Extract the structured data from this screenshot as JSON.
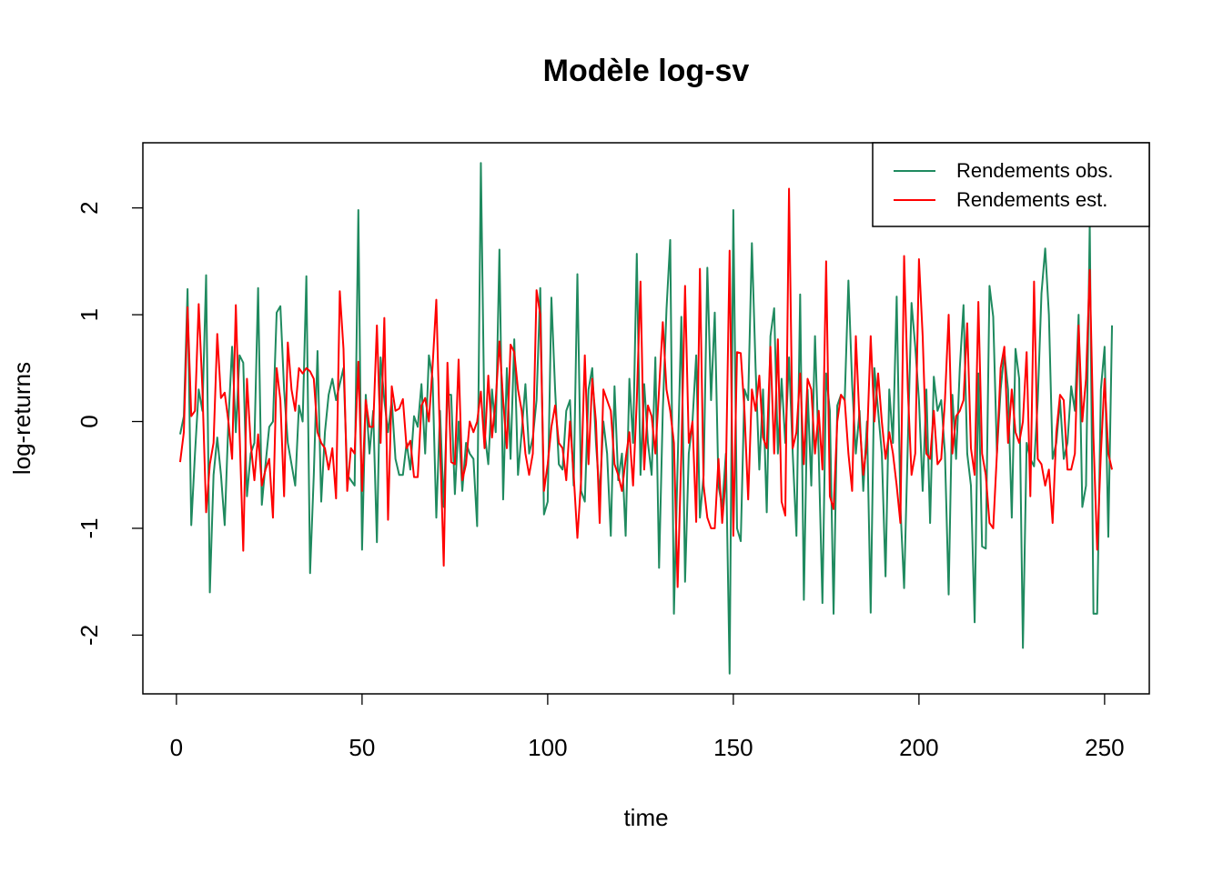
{
  "chart_data": {
    "type": "line",
    "title": "Modèle log-sv",
    "x_label": "time",
    "y_label": "log-returns",
    "x": [
      1,
      2,
      3,
      4,
      5,
      6,
      7,
      8,
      9,
      10,
      11,
      12,
      13,
      14,
      15,
      16,
      17,
      18,
      19,
      20,
      21,
      22,
      23,
      24,
      25,
      26,
      27,
      28,
      29,
      30,
      31,
      32,
      33,
      34,
      35,
      36,
      37,
      38,
      39,
      40,
      41,
      42,
      43,
      44,
      45,
      46,
      47,
      48,
      49,
      50,
      51,
      52,
      53,
      54,
      55,
      56,
      57,
      58,
      59,
      60,
      61,
      62,
      63,
      64,
      65,
      66,
      67,
      68,
      69,
      70,
      71,
      72,
      73,
      74,
      75,
      76,
      77,
      78,
      79,
      80,
      81,
      82,
      83,
      84,
      85,
      86,
      87,
      88,
      89,
      90,
      91,
      92,
      93,
      94,
      95,
      96,
      97,
      98,
      99,
      100,
      101,
      102,
      103,
      104,
      105,
      106,
      107,
      108,
      109,
      110,
      111,
      112,
      113,
      114,
      115,
      116,
      117,
      118,
      119,
      120,
      121,
      122,
      123,
      124,
      125,
      126,
      127,
      128,
      129,
      130,
      131,
      132,
      133,
      134,
      135,
      136,
      137,
      138,
      139,
      140,
      141,
      142,
      143,
      144,
      145,
      146,
      147,
      148,
      149,
      150,
      151,
      152,
      153,
      154,
      155,
      156,
      157,
      158,
      159,
      160,
      161,
      162,
      163,
      164,
      165,
      166,
      167,
      168,
      169,
      170,
      171,
      172,
      173,
      174,
      175,
      176,
      177,
      178,
      179,
      180,
      181,
      182,
      183,
      184,
      185,
      186,
      187,
      188,
      189,
      190,
      191,
      192,
      193,
      194,
      195,
      196,
      197,
      198,
      199,
      200,
      201,
      202,
      203,
      204,
      205,
      206,
      207,
      208,
      209,
      210,
      211,
      212,
      213,
      214,
      215,
      216,
      217,
      218,
      219,
      220,
      221,
      222,
      223,
      224,
      225,
      226,
      227,
      228,
      229,
      230,
      231,
      232,
      233,
      234,
      235,
      236,
      237,
      238,
      239,
      240,
      241,
      242,
      243,
      244,
      245,
      246,
      247,
      248,
      249,
      250,
      251,
      252
    ],
    "series": [
      {
        "name": "Rendements obs.",
        "color": "#1f8a5f",
        "values": [
          -0.12,
          0.05,
          1.24,
          -0.97,
          -0.3,
          0.3,
          0.1,
          1.37,
          -1.6,
          -0.5,
          -0.15,
          -0.5,
          -0.97,
          0.0,
          0.7,
          -0.1,
          0.62,
          0.55,
          -0.7,
          -0.3,
          -0.2,
          1.25,
          -0.78,
          -0.4,
          -0.05,
          0.0,
          1.02,
          1.08,
          0.3,
          -0.2,
          -0.4,
          -0.6,
          0.15,
          0.0,
          1.36,
          -1.42,
          -0.5,
          0.66,
          -0.75,
          -0.1,
          0.25,
          0.4,
          0.2,
          0.35,
          0.5,
          -0.5,
          -0.55,
          -0.6,
          1.98,
          -1.2,
          0.25,
          -0.3,
          0.1,
          -1.13,
          0.6,
          0.2,
          -0.1,
          0.2,
          -0.35,
          -0.5,
          -0.5,
          -0.2,
          -0.45,
          0.05,
          -0.05,
          0.35,
          -0.3,
          0.62,
          0.4,
          -0.9,
          0.1,
          -0.8,
          0.25,
          0.25,
          -0.68,
          0.0,
          -0.65,
          -0.2,
          -0.3,
          -0.35,
          -0.98,
          2.42,
          -0.1,
          -0.4,
          0.3,
          -0.1,
          1.61,
          -0.73,
          0.5,
          -0.35,
          0.77,
          -0.5,
          -0.1,
          0.35,
          -0.3,
          -0.15,
          0.2,
          1.25,
          -0.87,
          -0.75,
          1.16,
          0.3,
          -0.4,
          -0.45,
          0.1,
          0.2,
          -0.6,
          1.38,
          -0.65,
          -0.75,
          0.3,
          0.5,
          -0.2,
          -0.7,
          0.0,
          -0.3,
          -1.07,
          0.33,
          -0.55,
          -0.3,
          -1.07,
          0.4,
          -0.2,
          1.57,
          -0.5,
          0.35,
          -0.2,
          -0.5,
          0.6,
          -1.37,
          0.1,
          1.05,
          1.7,
          -1.8,
          -0.4,
          0.98,
          -1.5,
          -0.3,
          0.0,
          0.62,
          -0.9,
          -0.5,
          1.44,
          0.2,
          1.02,
          -0.6,
          -0.8,
          -0.3,
          -2.36,
          1.98,
          -1.0,
          -1.12,
          0.3,
          0.2,
          1.67,
          0.5,
          -0.45,
          0.3,
          -0.85,
          0.8,
          1.06,
          -0.3,
          0.4,
          -0.2,
          0.6,
          -0.3,
          -1.07,
          1.19,
          -1.67,
          0.3,
          -0.6,
          0.8,
          -0.3,
          -1.7,
          0.45,
          0.1,
          -1.8,
          0.15,
          0.25,
          0.2,
          1.32,
          0.35,
          -0.3,
          0.1,
          -0.65,
          0.0,
          -1.79,
          0.5,
          0.1,
          -0.3,
          -1.45,
          0.3,
          -0.2,
          1.17,
          -0.8,
          -1.56,
          -0.2,
          1.11,
          0.7,
          0.2,
          -0.65,
          0.3,
          -0.95,
          0.42,
          0.1,
          0.2,
          -0.3,
          -1.62,
          0.25,
          -0.35,
          0.5,
          1.09,
          -0.3,
          -0.6,
          -1.88,
          0.45,
          -1.17,
          -1.19,
          1.27,
          0.98,
          -0.3,
          0.3,
          0.65,
          0.3,
          -0.9,
          0.68,
          0.4,
          -2.12,
          -0.2,
          -0.35,
          -0.42,
          0.2,
          1.2,
          1.62,
          1.0,
          -0.35,
          -0.2,
          0.2,
          -0.35,
          -0.2,
          0.33,
          0.1,
          1.0,
          -0.8,
          -0.6,
          1.85,
          -1.8,
          -1.8,
          0.3,
          0.7,
          -1.08,
          0.9
        ]
      },
      {
        "name": "Rendements est.",
        "color": "#ff0000",
        "values": [
          -0.38,
          -0.1,
          1.07,
          0.05,
          0.1,
          1.1,
          0.3,
          -0.85,
          -0.4,
          -0.2,
          0.82,
          0.22,
          0.27,
          0.0,
          -0.35,
          1.09,
          -0.1,
          -1.21,
          0.4,
          -0.2,
          -0.55,
          -0.12,
          -0.6,
          -0.45,
          -0.35,
          -0.9,
          0.5,
          0.2,
          -0.7,
          0.74,
          0.3,
          0.1,
          0.5,
          0.45,
          0.5,
          0.47,
          0.4,
          -0.1,
          -0.2,
          -0.25,
          -0.45,
          -0.25,
          -0.72,
          1.22,
          0.68,
          -0.65,
          -0.25,
          -0.3,
          0.56,
          -0.65,
          0.2,
          -0.05,
          -0.05,
          0.9,
          -0.2,
          0.97,
          -0.92,
          0.33,
          0.1,
          0.12,
          0.21,
          -0.25,
          -0.18,
          -0.52,
          -0.52,
          0.15,
          0.22,
          0.0,
          0.52,
          1.14,
          -0.2,
          -1.35,
          0.55,
          -0.38,
          -0.4,
          0.58,
          -0.55,
          -0.4,
          0.0,
          -0.1,
          0.0,
          0.28,
          -0.25,
          0.43,
          -0.15,
          0.2,
          0.75,
          0.2,
          -0.25,
          0.72,
          0.65,
          0.3,
          0.1,
          -0.3,
          -0.5,
          -0.3,
          1.23,
          1.0,
          -0.65,
          -0.4,
          -0.05,
          0.15,
          -0.2,
          -0.25,
          -0.55,
          0.0,
          -0.5,
          -1.09,
          -0.55,
          0.62,
          -0.4,
          0.4,
          0.0,
          -0.95,
          0.3,
          0.2,
          0.1,
          -0.4,
          -0.5,
          -0.65,
          -0.35,
          -0.1,
          -0.6,
          0.2,
          1.31,
          -0.45,
          0.15,
          0.05,
          -0.3,
          0.3,
          0.93,
          0.3,
          0.1,
          -0.2,
          -1.55,
          -0.3,
          1.27,
          -0.2,
          0.0,
          -0.94,
          1.43,
          -0.6,
          -0.9,
          -1.0,
          -1.0,
          -0.35,
          -0.95,
          -0.5,
          1.6,
          -1.07,
          0.65,
          0.64,
          0.1,
          -0.73,
          0.3,
          0.1,
          0.43,
          -0.15,
          -0.25,
          0.7,
          -0.3,
          0.77,
          -0.75,
          -0.88,
          2.18,
          -0.25,
          -0.1,
          0.45,
          -0.4,
          0.4,
          0.3,
          -0.3,
          0.1,
          -0.45,
          1.5,
          -0.7,
          -0.82,
          0.0,
          0.25,
          0.2,
          -0.3,
          -0.65,
          0.8,
          0.0,
          -0.5,
          -0.2,
          0.8,
          0.0,
          0.45,
          0.0,
          -0.35,
          -0.1,
          -0.3,
          -0.6,
          -0.95,
          1.55,
          0.3,
          -0.5,
          -0.3,
          1.52,
          0.8,
          -0.3,
          -0.35,
          0.1,
          -0.4,
          -0.35,
          0.2,
          1.0,
          -0.3,
          0.05,
          0.1,
          0.2,
          0.92,
          -0.25,
          -0.5,
          1.12,
          -0.3,
          -0.5,
          -0.95,
          -1.0,
          -0.3,
          0.5,
          0.7,
          -0.2,
          0.3,
          -0.1,
          -0.2,
          0.0,
          0.65,
          -0.7,
          1.31,
          -0.35,
          -0.4,
          -0.6,
          -0.45,
          -0.95,
          -0.1,
          0.25,
          0.2,
          -0.45,
          -0.45,
          -0.3,
          0.9,
          0.0,
          0.4,
          1.42,
          -0.15,
          -1.2,
          -0.3,
          0.4,
          -0.3,
          -0.45
        ]
      }
    ],
    "xlim": [
      -9.04,
      262.04
    ],
    "xticks": [
      0,
      50,
      100,
      150,
      200,
      250
    ],
    "ylim": [
      -2.55,
      2.61
    ],
    "yticks": [
      -2,
      -1,
      0,
      1,
      2
    ],
    "legend": "top-right"
  }
}
